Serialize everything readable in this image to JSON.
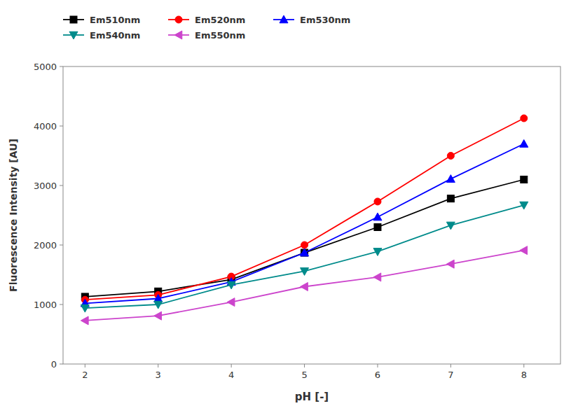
{
  "chart_data": {
    "type": "line",
    "x": [
      2,
      3,
      4,
      5,
      6,
      7,
      8
    ],
    "series": [
      {
        "name": "Em510nm",
        "color": "#000000",
        "marker": "square",
        "values": [
          1130,
          1220,
          1420,
          1870,
          2300,
          2780,
          3100
        ]
      },
      {
        "name": "Em520nm",
        "color": "#ff0000",
        "marker": "circle",
        "values": [
          1080,
          1160,
          1470,
          2000,
          2730,
          3500,
          4130
        ]
      },
      {
        "name": "Em530nm",
        "color": "#0000ff",
        "marker": "triangle-up",
        "values": [
          1020,
          1100,
          1380,
          1870,
          2470,
          3110,
          3700
        ]
      },
      {
        "name": "Em540nm",
        "color": "#008B8B",
        "marker": "triangle-down",
        "values": [
          940,
          1000,
          1330,
          1560,
          1890,
          2330,
          2670
        ]
      },
      {
        "name": "Em550nm",
        "color": "#cc44cc",
        "marker": "triangle-left",
        "values": [
          730,
          810,
          1040,
          1300,
          1460,
          1680,
          1910
        ]
      }
    ],
    "xlabel": "pH [-]",
    "ylabel": "Fluorescence Intensity [AU]",
    "xlim": [
      1.7,
      8.5
    ],
    "ylim": [
      0,
      5000
    ],
    "xticks": [
      2,
      3,
      4,
      5,
      6,
      7,
      8
    ],
    "yticks": [
      0,
      1000,
      2000,
      3000,
      4000,
      5000
    ],
    "grid": false,
    "legend": "top"
  }
}
